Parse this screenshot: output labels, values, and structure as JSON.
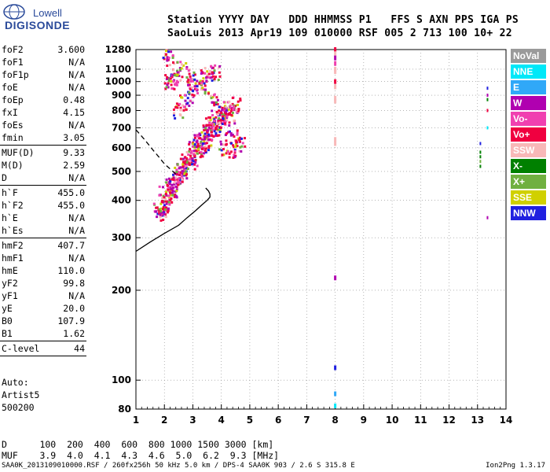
{
  "logo": {
    "line1": "Lowell",
    "line2": "DIGISONDE"
  },
  "header": {
    "line1": "Station YYYY DAY   DDD HHMMSS P1   FFS S AXN PPS IGA PS",
    "line2": "SaoLuis 2013 Apr19 109 010000 RSF 005 2 713 100 10+ 22"
  },
  "params": [
    [
      {
        "key": "foF2",
        "val": "3.600"
      },
      {
        "key": "foF1",
        "val": "N/A"
      },
      {
        "key": "foF1p",
        "val": "N/A"
      },
      {
        "key": "foE",
        "val": "N/A"
      },
      {
        "key": "foEp",
        "val": "0.48"
      },
      {
        "key": "fxI",
        "val": "4.15"
      },
      {
        "key": "foEs",
        "val": "N/A"
      },
      {
        "key": "fmin",
        "val": "3.05"
      }
    ],
    [
      {
        "key": "MUF(D)",
        "val": "9.33"
      },
      {
        "key": "M(D)",
        "val": "2.59"
      },
      {
        "key": "D",
        "val": "N/A"
      }
    ],
    [
      {
        "key": "h`F",
        "val": "455.0"
      },
      {
        "key": "h`F2",
        "val": "455.0"
      },
      {
        "key": "h`E",
        "val": "N/A"
      },
      {
        "key": "h`Es",
        "val": "N/A"
      }
    ],
    [
      {
        "key": "hmF2",
        "val": "407.7"
      },
      {
        "key": "hmF1",
        "val": "N/A"
      },
      {
        "key": "hmE",
        "val": "110.0"
      },
      {
        "key": "yF2",
        "val": "99.8"
      },
      {
        "key": "yF1",
        "val": "N/A"
      },
      {
        "key": "yE",
        "val": "20.0"
      },
      {
        "key": "B0",
        "val": "107.9"
      },
      {
        "key": "B1",
        "val": "1.62"
      }
    ],
    [
      {
        "key": "C-level",
        "val": "44"
      }
    ]
  ],
  "auto": {
    "line1": "Auto:",
    "line2": "Artist5",
    "line3": "500200"
  },
  "muf_table": {
    "d_row": "D      100  200  400  600  800 1000 1500 3000 [km]",
    "muf_row": "MUF    3.9  4.0  4.1  4.3  4.6  5.0  6.2  9.3 [MHz]"
  },
  "footer": "SAA0K_2013109010000.RSF / 260fx256h 50 kHz 5.0 km / DPS-4 SAA0K 903 / 2.6 S 315.8 E",
  "version": "Ion2Png 1.3.17",
  "legend": [
    {
      "label": "NoVal",
      "color": "#9a9a9a"
    },
    {
      "label": "NNE",
      "color": "#00e8f8"
    },
    {
      "label": "E",
      "color": "#30a8f8"
    },
    {
      "label": "W",
      "color": "#b000b0"
    },
    {
      "label": "Vo-",
      "color": "#f040b0"
    },
    {
      "label": "Vo+",
      "color": "#f00040"
    },
    {
      "label": "SSW",
      "color": "#f8b8b8"
    },
    {
      "label": "X-",
      "color": "#008000"
    },
    {
      "label": "X+",
      "color": "#70b040"
    },
    {
      "label": "SSE",
      "color": "#d0d000"
    },
    {
      "label": "NNW",
      "color": "#2020e0"
    }
  ],
  "chart_data": {
    "type": "scatter",
    "title": "",
    "xlabel": "",
    "ylabel": "",
    "xlim": [
      1,
      14
    ],
    "ylim_log": [
      80,
      1280
    ],
    "y_scale": "log",
    "x_ticks": [
      "1",
      "2",
      "3",
      "4",
      "5",
      "6",
      "7",
      "8",
      "9",
      "10",
      "11",
      "12",
      "13",
      "14"
    ],
    "y_ticks": [
      "80",
      "100",
      "200",
      "300",
      "400",
      "500",
      "600",
      "700",
      "800",
      "900",
      "1000",
      "1100",
      "1280"
    ],
    "grid": "dotted",
    "ionogram_points": [
      [
        1.8,
        370
      ],
      [
        1.9,
        360
      ],
      [
        2.0,
        380
      ],
      [
        2.1,
        395
      ],
      [
        2.2,
        410
      ],
      [
        2.3,
        430
      ],
      [
        2.4,
        450
      ],
      [
        2.5,
        470
      ],
      [
        2.6,
        480
      ],
      [
        2.7,
        500
      ],
      [
        2.8,
        520
      ],
      [
        2.9,
        540
      ],
      [
        3.0,
        555
      ],
      [
        3.1,
        575
      ],
      [
        3.2,
        590
      ],
      [
        3.3,
        610
      ],
      [
        3.4,
        625
      ],
      [
        3.5,
        640
      ],
      [
        3.6,
        660
      ],
      [
        3.7,
        680
      ],
      [
        3.8,
        700
      ],
      [
        3.9,
        720
      ],
      [
        4.0,
        745
      ],
      [
        4.1,
        760
      ],
      [
        4.2,
        780
      ],
      [
        4.3,
        800
      ],
      [
        4.4,
        820
      ],
      [
        4.5,
        840
      ],
      [
        2.0,
        420
      ],
      [
        2.2,
        460
      ],
      [
        2.4,
        490
      ],
      [
        2.6,
        520
      ],
      [
        2.8,
        560
      ],
      [
        3.0,
        600
      ],
      [
        3.2,
        640
      ],
      [
        3.4,
        680
      ],
      [
        3.6,
        720
      ],
      [
        3.8,
        760
      ],
      [
        2.5,
        800
      ],
      [
        2.7,
        850
      ],
      [
        2.9,
        900
      ],
      [
        3.0,
        950
      ],
      [
        3.2,
        1000
      ],
      [
        3.4,
        1030
      ],
      [
        3.6,
        1050
      ],
      [
        3.8,
        1070
      ],
      [
        2.1,
        1250
      ],
      [
        2.2,
        1200
      ],
      [
        2.3,
        1000
      ],
      [
        2.1,
        1000
      ],
      [
        2.4,
        1050
      ],
      [
        2.6,
        1100
      ],
      [
        2.9,
        1060
      ],
      [
        3.3,
        950
      ],
      [
        3.7,
        880
      ],
      [
        4.0,
        820
      ],
      [
        4.3,
        700
      ],
      [
        4.5,
        650
      ],
      [
        4.7,
        620
      ],
      [
        4.1,
        600
      ],
      [
        4.4,
        580
      ]
    ],
    "vertical_trace_x": 8.0,
    "right_points_x": 13.1,
    "fitted_profile": {
      "solid": [
        [
          1,
          270
        ],
        [
          1.5,
          290
        ],
        [
          2.0,
          310
        ],
        [
          2.5,
          330
        ],
        [
          2.8,
          350
        ],
        [
          3.1,
          370
        ],
        [
          3.3,
          385
        ],
        [
          3.5,
          400
        ],
        [
          3.6,
          410
        ],
        [
          3.6,
          420
        ],
        [
          3.55,
          430
        ],
        [
          3.45,
          440
        ]
      ],
      "dashed": [
        [
          1,
          690
        ],
        [
          1.3,
          640
        ],
        [
          1.6,
          590
        ],
        [
          1.8,
          560
        ],
        [
          2.0,
          530
        ],
        [
          2.2,
          510
        ],
        [
          2.4,
          490
        ]
      ]
    }
  }
}
